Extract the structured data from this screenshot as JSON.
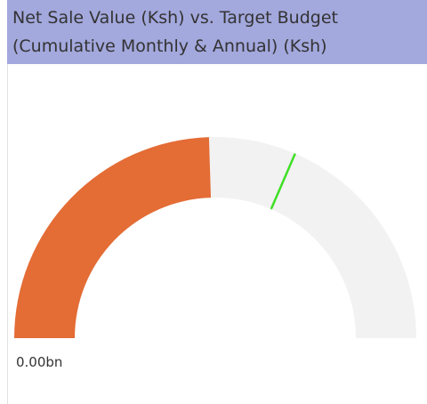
{
  "chart_data": {
    "type": "gauge",
    "title": [
      "Net Sale Value (Ksh) vs. Target Budget",
      "(Cumulative Monthly & Annual) (Ksh)"
    ],
    "range": [
      0,
      1
    ],
    "min_label": {
      "value": 0,
      "label": "0.00bn"
    },
    "value": 0.49,
    "target": 0.63,
    "color": "#e46c35",
    "track_color": "#f2f2f2",
    "target_color": "#3ee024"
  }
}
